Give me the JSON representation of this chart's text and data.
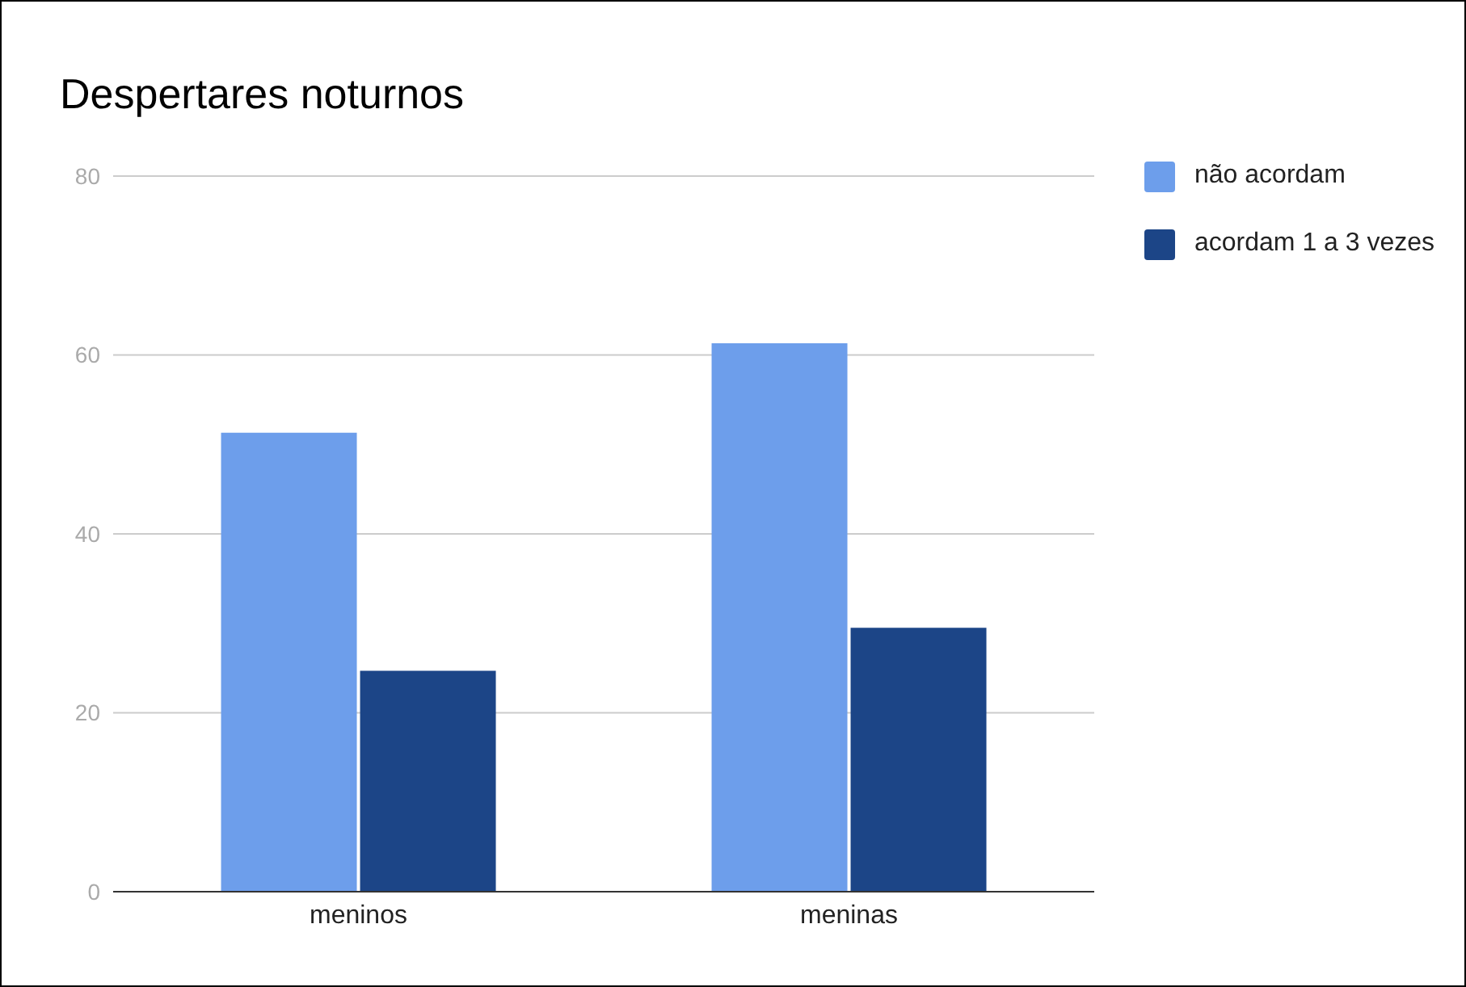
{
  "chart_data": {
    "type": "bar",
    "title": "Despertares noturnos",
    "categories": [
      "meninos",
      "meninas"
    ],
    "series": [
      {
        "name": "não acordam",
        "color": "#6d9eeb",
        "values": [
          51.3,
          61.3
        ]
      },
      {
        "name": "acordam 1 a 3 vezes",
        "color": "#1c4587",
        "values": [
          24.7,
          29.5
        ]
      }
    ],
    "ylim": [
      0,
      80
    ],
    "yticks": [
      0,
      20,
      40,
      60,
      80
    ],
    "grid": "y",
    "legend": "top right"
  }
}
